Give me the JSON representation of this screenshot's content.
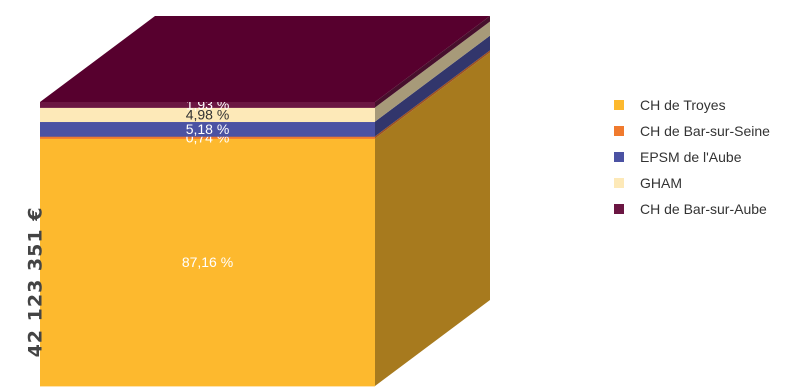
{
  "chart_data": {
    "type": "stacked-3d-block",
    "total_label": "42 123 351 €",
    "series": [
      {
        "name": "CH de Troyes",
        "value": 87.16,
        "label": "87,16 %",
        "color": "#FDB92E"
      },
      {
        "name": "CH de Bar-sur-Seine",
        "value": 0.74,
        "label": "0,74 %",
        "color": "#F07A2E"
      },
      {
        "name": "EPSM de l'Aube",
        "value": 5.18,
        "label": "5,18 %",
        "color": "#4B52A3"
      },
      {
        "name": "GHAM",
        "value": 4.98,
        "label": "4,98 %",
        "color": "#FDE9B8"
      },
      {
        "name": "CH de Bar-sur-Aube",
        "value": 1.93,
        "label": "1,93 %",
        "color": "#6B1642"
      }
    ],
    "top_color": "#57002E",
    "legend_position": "right"
  }
}
